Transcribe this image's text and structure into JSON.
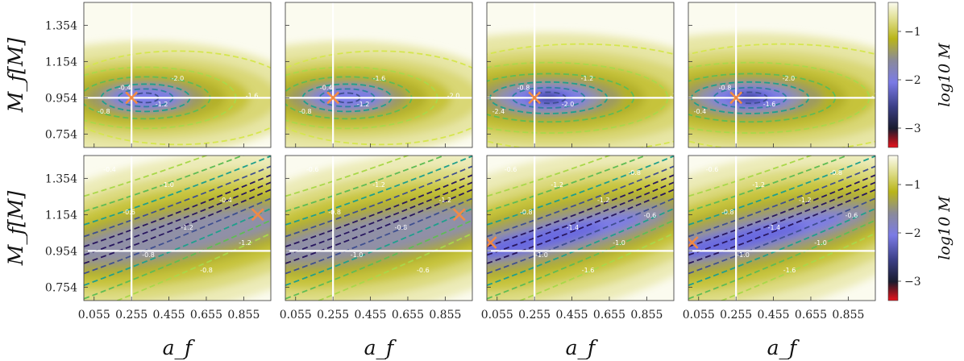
{
  "chart_data": {
    "type": "heatmap",
    "layout": {
      "rows": 2,
      "cols": 4
    },
    "xlabel": "a_f",
    "ylabel": "M_f[M]",
    "x_ticks": [
      "0.055",
      "0.255",
      "0.455",
      "0.655",
      "0.855"
    ],
    "x_tick_values": [
      0.055,
      0.255,
      0.455,
      0.655,
      0.855
    ],
    "y_ticks": [
      "0.754",
      "0.954",
      "1.154",
      "1.354"
    ],
    "y_tick_values": [
      0.754,
      0.954,
      1.154,
      1.354
    ],
    "xlim": [
      0.0,
      1.0
    ],
    "ylim": [
      0.68,
      1.48
    ],
    "true_value": {
      "a_f": 0.255,
      "M_f": 0.954
    },
    "colorbar": {
      "label": "log10 M",
      "ticks": [
        "−1",
        "−2",
        "−3"
      ],
      "tick_values": [
        -1,
        -2,
        -3
      ],
      "range": [
        -3.4,
        -0.4
      ],
      "colors": {
        "low": "#e8141e",
        "dark": "#191b2e",
        "mid": "#7b7be6",
        "olive": "#b9b518",
        "light": "#fbfbef"
      }
    },
    "panels": [
      {
        "row": 0,
        "col": 0,
        "min_marker": {
          "a_f": 0.255,
          "M_f": 0.954
        },
        "min_value": -2.4,
        "contour_labels": [
          "-0.4",
          "-2.0",
          "-1.6",
          "-1.2",
          "-0.8",
          "-0.4"
        ]
      },
      {
        "row": 0,
        "col": 1,
        "min_marker": {
          "a_f": 0.255,
          "M_f": 0.954
        },
        "min_value": -2.1,
        "contour_labels": [
          "-0.4",
          "-1.6",
          "-2.0",
          "-1.2",
          "-0.8"
        ]
      },
      {
        "row": 0,
        "col": 2,
        "min_marker": {
          "a_f": 0.255,
          "M_f": 0.954
        },
        "min_value": -2.6,
        "contour_labels": [
          "-0.8",
          "-1.2",
          "-1.6",
          "-2.0",
          "-2.4",
          "-0.4"
        ]
      },
      {
        "row": 0,
        "col": 3,
        "min_marker": {
          "a_f": 0.255,
          "M_f": 0.954
        },
        "min_value": -2.8,
        "contour_labels": [
          "-0.8",
          "-2.0",
          "-1.2",
          "-1.6",
          "-0.4"
        ]
      },
      {
        "row": 1,
        "col": 0,
        "min_marker": {
          "a_f": 0.93,
          "M_f": 1.154
        },
        "min_value": -1.4,
        "contour_labels": [
          "-0.4",
          "-0.6",
          "-0.8",
          "-1.0",
          "-1.2",
          "-0.8",
          "-0.4",
          "-1.2"
        ]
      },
      {
        "row": 1,
        "col": 1,
        "min_marker": {
          "a_f": 0.93,
          "M_f": 1.154
        },
        "min_value": -1.4,
        "contour_labels": [
          "-0.6",
          "-0.8",
          "-1.0",
          "-1.2",
          "-0.8",
          "-0.6",
          "-1.2"
        ]
      },
      {
        "row": 1,
        "col": 2,
        "min_marker": {
          "a_f": 0.02,
          "M_f": 1.0
        },
        "min_value": -1.9,
        "contour_labels": [
          "-0.6",
          "-0.8",
          "-1.0",
          "-1.2",
          "-1.4",
          "-1.6",
          "-1.2",
          "-1.0",
          "-0.8",
          "-0.6"
        ]
      },
      {
        "row": 1,
        "col": 3,
        "min_marker": {
          "a_f": 0.02,
          "M_f": 1.0
        },
        "min_value": -1.9,
        "contour_labels": [
          "-0.6",
          "-0.8",
          "-1.0",
          "-1.2",
          "-1.4",
          "-1.6",
          "-1.2",
          "-1.0",
          "-0.8",
          "-0.6"
        ]
      }
    ]
  }
}
